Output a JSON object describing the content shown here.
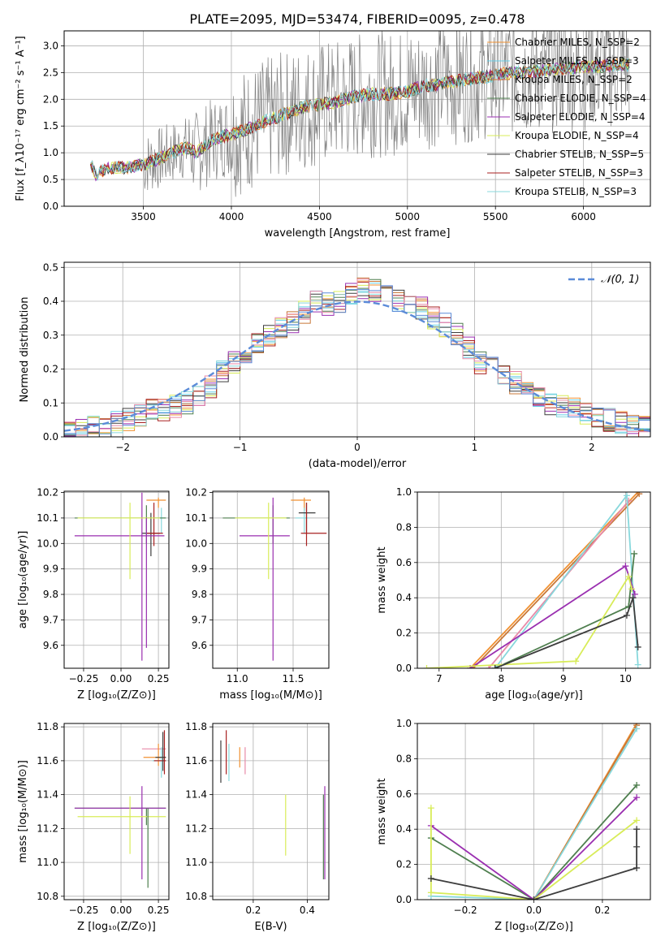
{
  "colors": {
    "c1": "#f09030",
    "c2": "#66cfe8",
    "c3": "#c87838",
    "c4": "#4f7f4f",
    "c5": "#9a2fb0",
    "c6": "#d8ec58",
    "c7": "#3d3d3d",
    "c8": "#a82020",
    "c9": "#88d8dc",
    "gray": "#808080",
    "pink": "#e88aa8",
    "blue": "#5b8bd8",
    "dash": "#5b8bd8",
    "grid": "#b0b0b0"
  },
  "figure_title": "PLATE=2095, MJD=53474, FIBERID=0095, z=0.478",
  "chart_data": [
    {
      "id": "spectrum",
      "type": "line",
      "xlabel": "wavelength [Angstrom, rest frame]",
      "ylabel": "Flux [f_λ10⁻¹⁷ erg cm⁻² s⁻¹ A⁻¹]",
      "xlim": [
        3050,
        6380
      ],
      "ylim": [
        0,
        3.28
      ],
      "xticks": [
        3500,
        4000,
        4500,
        5000,
        5500,
        6000
      ],
      "yticks": [
        0.0,
        0.5,
        1.0,
        1.5,
        2.0,
        2.5,
        3.0
      ],
      "legend_position": "top-right",
      "legend": [
        {
          "label": "Chabrier MILES, N_SSP=2",
          "color": "c1"
        },
        {
          "label": "Salpeter MILES, N_SSP=3",
          "color": "c2"
        },
        {
          "label": "Kroupa MILES, N_SSP=2",
          "color": "c3"
        },
        {
          "label": "Chabrier ELODIE, N_SSP=4",
          "color": "c4"
        },
        {
          "label": "Salpeter ELODIE, N_SSP=4",
          "color": "c5"
        },
        {
          "label": "Kroupa ELODIE, N_SSP=4",
          "color": "c6"
        },
        {
          "label": "Chabrier STELIB, N_SSP=5",
          "color": "c7"
        },
        {
          "label": "Salpeter STELIB, N_SSP=3",
          "color": "c8"
        },
        {
          "label": "Kroupa STELIB, N_SSP=3",
          "color": "c9"
        }
      ],
      "continuum": {
        "x": [
          3200,
          3230,
          3300,
          3400,
          3500,
          3600,
          3700,
          3750,
          3800,
          3900,
          4000,
          4100,
          4200,
          4300,
          4400,
          4500,
          4600,
          4700,
          4800,
          4900,
          5000,
          5100,
          5200,
          5300,
          5400,
          5500,
          5600,
          5700,
          5800,
          5900,
          6000,
          6100,
          6200,
          6260
        ],
        "y": [
          0.8,
          0.58,
          0.72,
          0.72,
          0.78,
          0.9,
          1.05,
          1.1,
          1.0,
          1.25,
          1.35,
          1.45,
          1.6,
          1.72,
          1.85,
          1.9,
          1.95,
          2.05,
          2.1,
          2.1,
          2.15,
          2.25,
          2.3,
          2.35,
          2.4,
          2.45,
          2.5,
          2.5,
          2.55,
          2.58,
          2.6,
          2.62,
          2.65,
          2.65
        ]
      }
    },
    {
      "id": "residuals",
      "type": "line",
      "xlabel": "(data-model)/error",
      "ylabel": "Normed distribution",
      "xlim": [
        -2.5,
        2.5
      ],
      "ylim": [
        0,
        0.515
      ],
      "xticks": [
        -2,
        -1,
        0,
        1,
        2
      ],
      "yticks": [
        0.0,
        0.1,
        0.2,
        0.3,
        0.4,
        0.5
      ],
      "legend_position": "top-right",
      "legend": [
        {
          "label": "𝒩(0, 1)",
          "color": "dash"
        }
      ],
      "bin_edges": [
        -2.5,
        -2.4,
        -2.3,
        -2.2,
        -2.1,
        -2.0,
        -1.9,
        -1.8,
        -1.7,
        -1.6,
        -1.5,
        -1.4,
        -1.3,
        -1.2,
        -1.1,
        -1.0,
        -0.9,
        -0.8,
        -0.7,
        -0.6,
        -0.5,
        -0.4,
        -0.3,
        -0.2,
        -0.1,
        0.0,
        0.1,
        0.2,
        0.3,
        0.4,
        0.5,
        0.6,
        0.7,
        0.8,
        0.9,
        1.0,
        1.1,
        1.2,
        1.3,
        1.4,
        1.5,
        1.6,
        1.7,
        1.8,
        1.9,
        2.0,
        2.1,
        2.2,
        2.3,
        2.4,
        2.5
      ],
      "hist_base": [
        0.02,
        0.02,
        0.03,
        0.03,
        0.04,
        0.05,
        0.06,
        0.08,
        0.08,
        0.09,
        0.1,
        0.12,
        0.15,
        0.19,
        0.22,
        0.25,
        0.28,
        0.3,
        0.32,
        0.34,
        0.37,
        0.4,
        0.39,
        0.4,
        0.42,
        0.44,
        0.43,
        0.42,
        0.4,
        0.4,
        0.38,
        0.35,
        0.33,
        0.3,
        0.26,
        0.22,
        0.2,
        0.19,
        0.16,
        0.14,
        0.12,
        0.1,
        0.09,
        0.08,
        0.07,
        0.06,
        0.05,
        0.04,
        0.03,
        0.03
      ],
      "series_colors": [
        "c1",
        "c2",
        "c3",
        "c4",
        "c5",
        "c6",
        "c7",
        "c8",
        "c9",
        "pink",
        "blue"
      ]
    },
    {
      "id": "age-vs-Z",
      "type": "scatter",
      "xlabel": "Z [log₁₀(Z/Z⊙)]",
      "ylabel": "age  [log₁₀(age/yr)]",
      "xlim": [
        -0.38,
        0.32
      ],
      "ylim": [
        9.51,
        10.205
      ],
      "xticks": [
        -0.25,
        0.0,
        0.25
      ],
      "xticklabels": [
        "−0.25",
        "0.00",
        "0.25"
      ],
      "yticks": [
        9.6,
        9.7,
        9.8,
        9.9,
        10.0,
        10.1,
        10.2
      ],
      "points": [
        {
          "x": 0.25,
          "xerr": [
            0.08,
            0.05
          ],
          "y": 10.17,
          "yerr": [
            0.03,
            0.01
          ],
          "color": "c1"
        },
        {
          "x": 0.27,
          "xerr": [
            0.05,
            0.03
          ],
          "y": 10.1,
          "yerr": [
            0.06,
            0.04
          ],
          "color": "c9"
        },
        {
          "x": 0.2,
          "xerr": [
            0.06,
            0.06
          ],
          "y": 10.04,
          "yerr": [
            0.09,
            0.08
          ],
          "color": "c7"
        },
        {
          "x": 0.22,
          "xerr": [
            0.05,
            0.06
          ],
          "y": 10.04,
          "yerr": [
            0.05,
            0.12
          ],
          "color": "c8"
        },
        {
          "x": 0.17,
          "xerr": [
            0.48,
            0.13
          ],
          "y": 10.1,
          "yerr": [
            0.1,
            0.05
          ],
          "color": "c4"
        },
        {
          "x": 0.14,
          "xerr": [
            0.45,
            0.15
          ],
          "y": 10.03,
          "yerr": [
            0.49,
            0.17
          ],
          "color": "c5"
        },
        {
          "x": 0.06,
          "xerr": [
            0.35,
            0.2
          ],
          "y": 10.1,
          "yerr": [
            0.24,
            0.06
          ],
          "color": "c6"
        },
        {
          "x": 0.17,
          "xerr": [
            0.0,
            0.0
          ],
          "y": 10.1,
          "yerr": [
            0.51,
            0.0
          ],
          "color": "c5"
        }
      ]
    },
    {
      "id": "age-vs-mass",
      "type": "scatter",
      "xlabel": "mass [log₁₀(M/M⊙)]",
      "ylabel": "",
      "xlim": [
        10.78,
        11.82
      ],
      "ylim": [
        9.51,
        10.205
      ],
      "xticks": [
        11.0,
        11.5
      ],
      "xticklabels": [
        "11.0",
        "11.5"
      ],
      "yticks": [
        9.6,
        9.7,
        9.8,
        9.9,
        10.0,
        10.1,
        10.2
      ],
      "points": [
        {
          "x": 11.6,
          "xerr": [
            0.12,
            0.06
          ],
          "y": 10.17,
          "yerr": [
            0.04,
            0.01
          ],
          "color": "c1"
        },
        {
          "x": 11.6,
          "xerr": [
            0.08,
            0.05
          ],
          "y": 10.1,
          "yerr": [
            0.06,
            0.04
          ],
          "color": "c9"
        },
        {
          "x": 11.62,
          "xerr": [
            0.07,
            0.08
          ],
          "y": 10.12,
          "yerr": [
            0.08,
            0.04
          ],
          "color": "c7"
        },
        {
          "x": 11.62,
          "xerr": [
            0.05,
            0.18
          ],
          "y": 10.04,
          "yerr": [
            0.05,
            0.12
          ],
          "color": "c8"
        },
        {
          "x": 11.32,
          "xerr": [
            0.45,
            0.15
          ],
          "y": 10.1,
          "yerr": [
            0.1,
            0.05
          ],
          "color": "c4"
        },
        {
          "x": 11.32,
          "xerr": [
            0.3,
            0.15
          ],
          "y": 10.03,
          "yerr": [
            0.49,
            0.15
          ],
          "color": "c5"
        },
        {
          "x": 11.28,
          "xerr": [
            0.3,
            0.16
          ],
          "y": 10.1,
          "yerr": [
            0.24,
            0.06
          ],
          "color": "c6"
        }
      ]
    },
    {
      "id": "massweight-vs-age",
      "type": "line",
      "xlabel": "age  [log₁₀(age/yr)]",
      "ylabel": "mass weight",
      "xlim": [
        6.65,
        10.4
      ],
      "ylim": [
        0,
        1.0
      ],
      "xticks": [
        7,
        8,
        9,
        10
      ],
      "yticks": [
        0.0,
        0.2,
        0.4,
        0.6,
        0.8,
        1.0
      ],
      "series": [
        {
          "color": "c1",
          "x": [
            7.5,
            10.2
          ],
          "y": [
            0.0,
            1.0
          ]
        },
        {
          "color": "c3",
          "x": [
            7.55,
            10.22
          ],
          "y": [
            0.0,
            0.99
          ]
        },
        {
          "color": "pink",
          "x": [
            7.8,
            10.05
          ],
          "y": [
            0.0,
            0.95
          ]
        },
        {
          "color": "c9",
          "x": [
            7.9,
            10.02,
            10.2
          ],
          "y": [
            0.0,
            0.98,
            0.02
          ]
        },
        {
          "color": "c4",
          "x": [
            7.9,
            10.05,
            10.14
          ],
          "y": [
            0.0,
            0.35,
            0.65
          ]
        },
        {
          "color": "c5",
          "x": [
            7.5,
            10.0,
            10.15
          ],
          "y": [
            0.0,
            0.58,
            0.42
          ]
        },
        {
          "color": "c6",
          "x": [
            6.8,
            9.2,
            10.05,
            10.1
          ],
          "y": [
            0.0,
            0.04,
            0.52,
            0.45
          ]
        },
        {
          "color": "c7",
          "x": [
            7.9,
            10.02,
            10.12,
            10.2
          ],
          "y": [
            0.0,
            0.3,
            0.4,
            0.12
          ]
        }
      ]
    },
    {
      "id": "mass-vs-Z",
      "type": "scatter",
      "xlabel": "Z [log₁₀(Z/Z⊙)]",
      "ylabel": "mass [log₁₀(M/M⊙)]",
      "xlim": [
        -0.38,
        0.32
      ],
      "ylim": [
        10.78,
        11.82
      ],
      "xticks": [
        -0.25,
        0.0,
        0.25
      ],
      "xticklabels": [
        "−0.25",
        "0.00",
        "0.25"
      ],
      "yticks": [
        10.8,
        11.0,
        11.2,
        11.4,
        11.6,
        11.8
      ],
      "points": [
        {
          "x": 0.22,
          "xerr": [
            0.08,
            0.08
          ],
          "y": 11.67,
          "yerr": [
            0.0,
            0.0
          ],
          "color": "pink"
        },
        {
          "x": 0.25,
          "xerr": [
            0.1,
            0.05
          ],
          "y": 11.62,
          "yerr": [
            0.05,
            0.08
          ],
          "color": "c1"
        },
        {
          "x": 0.27,
          "xerr": [
            0.06,
            0.03
          ],
          "y": 11.6,
          "yerr": [
            0.1,
            0.08
          ],
          "color": "c9"
        },
        {
          "x": 0.29,
          "xerr": [
            0.07,
            0.01
          ],
          "y": 11.6,
          "yerr": [
            0.08,
            0.18
          ],
          "color": "c8"
        },
        {
          "x": 0.28,
          "xerr": [
            0.05,
            0.02
          ],
          "y": 11.62,
          "yerr": [
            0.08,
            0.15
          ],
          "color": "c7"
        },
        {
          "x": 0.17,
          "xerr": [
            0.48,
            0.13
          ],
          "y": 11.32,
          "yerr": [
            0.1,
            0.0
          ],
          "color": "c4"
        },
        {
          "x": 0.14,
          "xerr": [
            0.45,
            0.16
          ],
          "y": 11.32,
          "yerr": [
            0.42,
            0.13
          ],
          "color": "c5"
        },
        {
          "x": 0.06,
          "xerr": [
            0.35,
            0.24
          ],
          "y": 11.27,
          "yerr": [
            0.22,
            0.12
          ],
          "color": "c6"
        },
        {
          "x": 0.18,
          "xerr": [
            0.0,
            0.0
          ],
          "y": 11.32,
          "yerr": [
            0.47,
            0.0
          ],
          "color": "c4"
        }
      ]
    },
    {
      "id": "mass-vs-ebv",
      "type": "scatter",
      "xlabel": "E(B-V)",
      "ylabel": "",
      "xlim": [
        0.05,
        0.48
      ],
      "ylim": [
        10.78,
        11.82
      ],
      "xticks": [
        0.2,
        0.4
      ],
      "xticklabels": [
        "0.2",
        "0.4"
      ],
      "yticks": [
        10.8,
        11.0,
        11.2,
        11.4,
        11.6,
        11.8
      ],
      "points": [
        {
          "x": 0.08,
          "xerr": [
            0.0,
            0.0
          ],
          "y": 11.62,
          "yerr": [
            0.15,
            0.1
          ],
          "color": "c7"
        },
        {
          "x": 0.1,
          "xerr": [
            0.0,
            0.0
          ],
          "y": 11.62,
          "yerr": [
            0.1,
            0.16
          ],
          "color": "c8"
        },
        {
          "x": 0.11,
          "xerr": [
            0.0,
            0.0
          ],
          "y": 11.6,
          "yerr": [
            0.12,
            0.1
          ],
          "color": "c9"
        },
        {
          "x": 0.15,
          "xerr": [
            0.0,
            0.0
          ],
          "y": 11.62,
          "yerr": [
            0.06,
            0.06
          ],
          "color": "c1"
        },
        {
          "x": 0.17,
          "xerr": [
            0.0,
            0.0
          ],
          "y": 11.62,
          "yerr": [
            0.1,
            0.06
          ],
          "color": "pink"
        },
        {
          "x": 0.32,
          "xerr": [
            0.0,
            0.0
          ],
          "y": 11.22,
          "yerr": [
            0.18,
            0.18
          ],
          "color": "c6"
        },
        {
          "x": 0.46,
          "xerr": [
            0.0,
            0.0
          ],
          "y": 11.2,
          "yerr": [
            0.3,
            0.2
          ],
          "color": "c4"
        },
        {
          "x": 0.465,
          "xerr": [
            0.0,
            0.0
          ],
          "y": 11.2,
          "yerr": [
            0.3,
            0.25
          ],
          "color": "c5"
        }
      ]
    },
    {
      "id": "massweight-vs-Z",
      "type": "line",
      "xlabel": "Z [log₁₀(Z/Z⊙)]",
      "ylabel": "mass weight",
      "xlim": [
        -0.34,
        0.34
      ],
      "ylim": [
        0,
        1.0
      ],
      "xticks": [
        -0.2,
        0.0,
        0.2
      ],
      "xticklabels": [
        "−0.2",
        "0.0",
        "0.2"
      ],
      "yticks": [
        0.0,
        0.2,
        0.4,
        0.6,
        0.8,
        1.0
      ],
      "series": [
        {
          "color": "c1",
          "x": [
            0.0,
            0.3
          ],
          "y": [
            0.0,
            1.0
          ]
        },
        {
          "color": "c3",
          "x": [
            0.0,
            0.3
          ],
          "y": [
            0.0,
            0.99
          ]
        },
        {
          "color": "c9",
          "x": [
            -0.3,
            0.0,
            0.3
          ],
          "y": [
            0.02,
            0.0,
            0.97
          ]
        },
        {
          "color": "c4",
          "x": [
            -0.3,
            0.0,
            0.3
          ],
          "y": [
            0.35,
            0.0,
            0.65
          ]
        },
        {
          "color": "c5",
          "x": [
            -0.3,
            0.0,
            0.3
          ],
          "y": [
            0.42,
            0.0,
            0.58
          ]
        },
        {
          "color": "c6",
          "x": [
            -0.3,
            -0.3,
            0.0,
            0.3
          ],
          "y": [
            0.52,
            0.04,
            0.0,
            0.45
          ]
        },
        {
          "color": "c7",
          "x": [
            -0.3,
            0.0,
            0.3,
            0.3,
            0.3
          ],
          "y": [
            0.12,
            0.0,
            0.18,
            0.3,
            0.4
          ]
        }
      ]
    }
  ]
}
